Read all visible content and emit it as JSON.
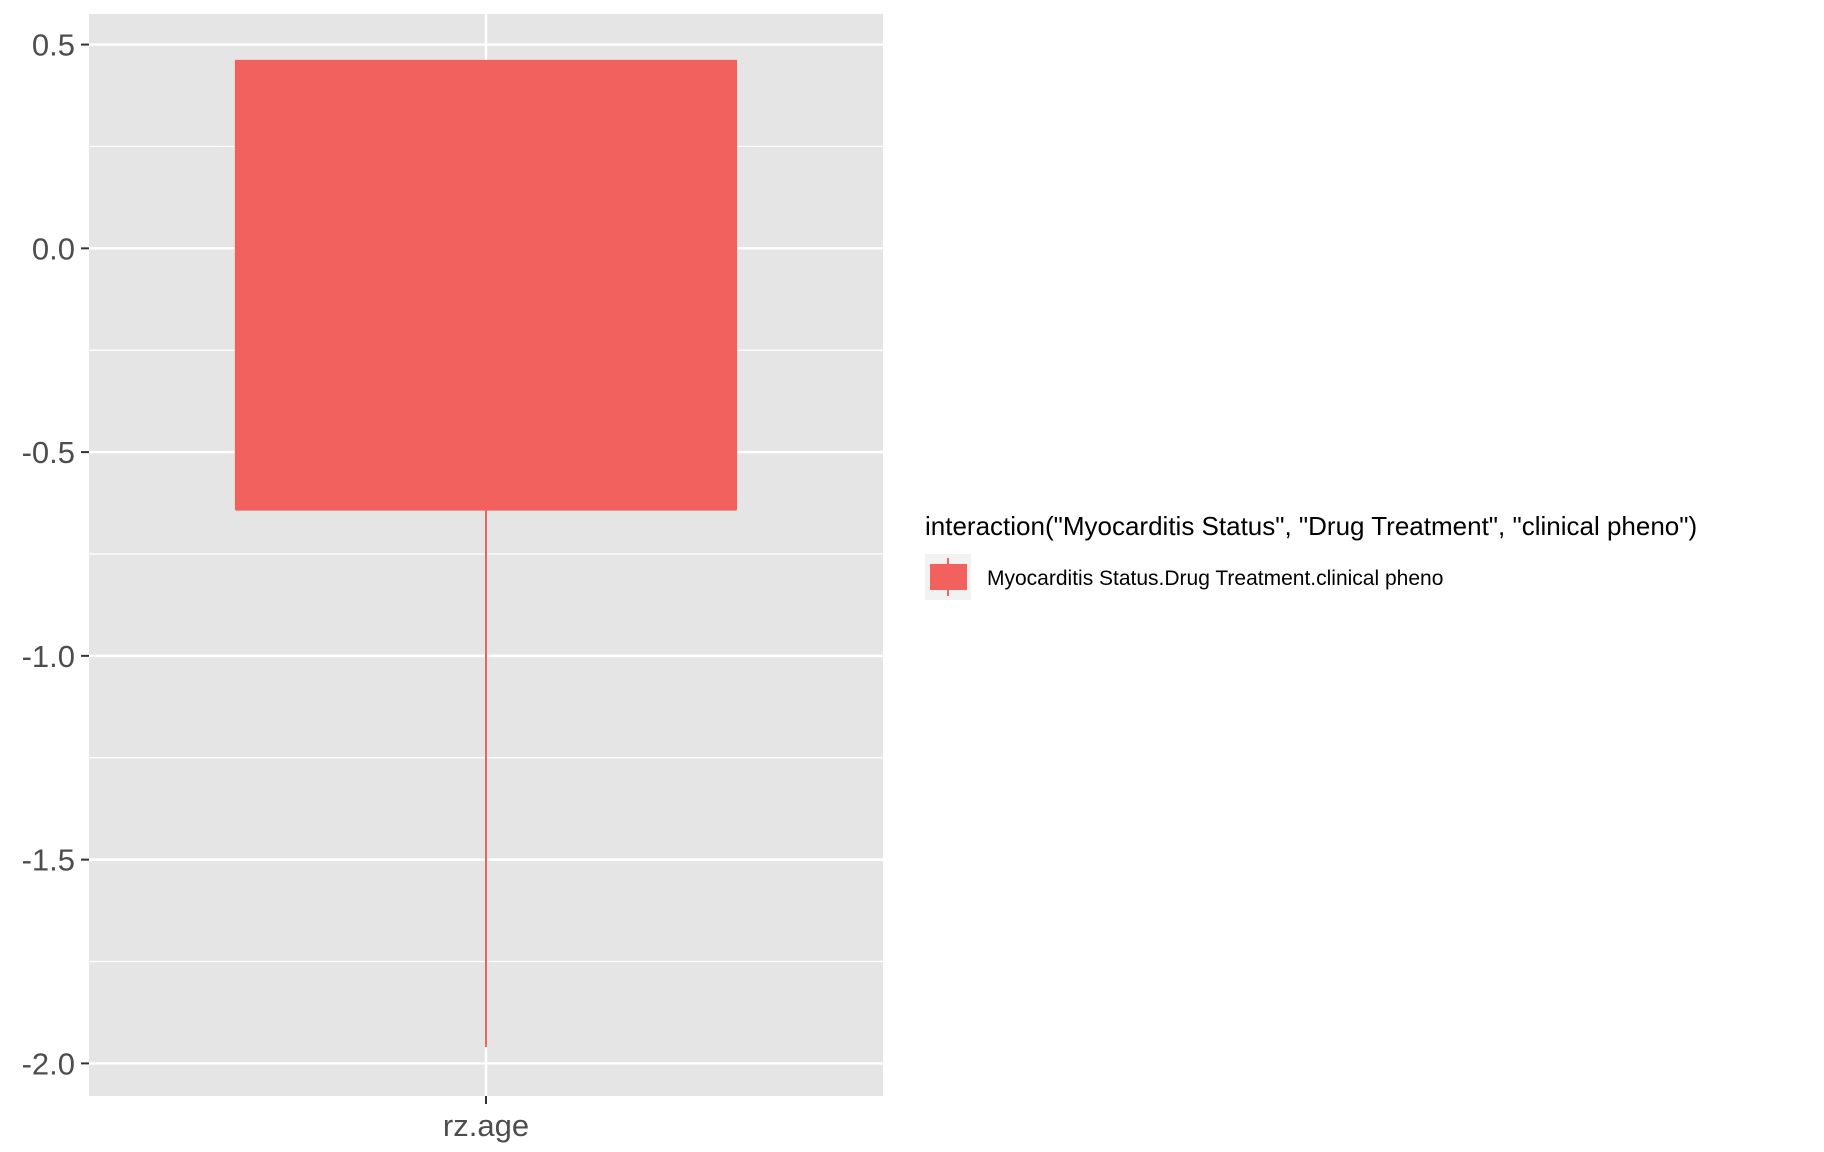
{
  "chart_data": {
    "type": "boxplot",
    "categories": [
      "rz.age"
    ],
    "series": [
      {
        "name": "Myocarditis Status.Drug Treatment.clinical pheno",
        "color": "#F2615D",
        "boxes": [
          {
            "category": "rz.age",
            "lower_whisker": -1.96,
            "q1": -0.64,
            "median": -0.64,
            "q3": 0.46,
            "upper_whisker": 0.46
          }
        ]
      }
    ],
    "y_ticks": [
      0.5,
      0.0,
      -0.5,
      -1.0,
      -1.5,
      -2.0
    ],
    "y_tick_labels": [
      "0.5",
      "0.0",
      "-0.5",
      "-1.0",
      "-1.5",
      "-2.0"
    ],
    "ylim": [
      -2.08,
      0.575
    ],
    "xlabel": "",
    "ylabel": "",
    "grid": true,
    "panel_background": "#E5E5E5",
    "legend": {
      "position": "right",
      "title": "interaction(\"Myocarditis Status\", \"Drug Treatment\", \"clinical pheno\")",
      "entries": [
        "Myocarditis Status.Drug Treatment.clinical pheno"
      ]
    }
  }
}
